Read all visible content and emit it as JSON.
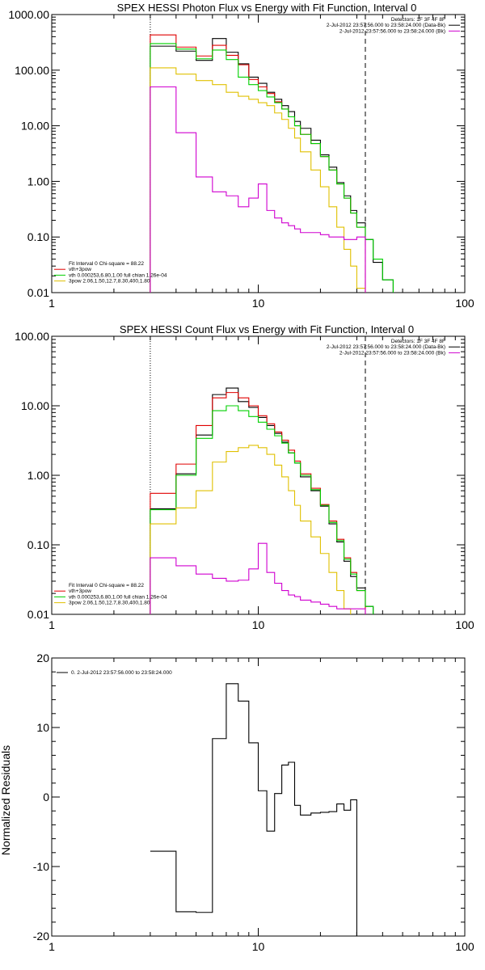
{
  "colors": {
    "black": "#000000",
    "red": "#e00000",
    "green": "#00d000",
    "yellow": "#e0c000",
    "magenta": "#d000d0"
  },
  "chart_data": [
    {
      "type": "line",
      "title": "SPEX HESSI Photon Flux vs Energy with Fit Function, Interval 0",
      "xscale": "log",
      "yscale": "log",
      "xlim": [
        1,
        100
      ],
      "ylim": [
        0.01,
        1000
      ],
      "x_ticks": [
        {
          "v": 1,
          "label": "1"
        },
        {
          "v": 10,
          "label": "10"
        },
        {
          "v": 100,
          "label": "100"
        }
      ],
      "y_ticks": [
        {
          "v": 1000,
          "label": "1000.00"
        },
        {
          "v": 100,
          "label": "100.00"
        },
        {
          "v": 10,
          "label": "10.00"
        },
        {
          "v": 1,
          "label": "1.00"
        },
        {
          "v": 0.1,
          "label": "0.10"
        },
        {
          "v": 0.01,
          "label": "0.01"
        }
      ],
      "vlines": [
        {
          "x": 3,
          "style": "dotted"
        },
        {
          "x": 33,
          "style": "dashed"
        }
      ],
      "legend_top_right": [
        {
          "text": "Detectors: 1F 3F 4F 8F",
          "color": "none"
        },
        {
          "text": "2-Jul-2012 23:57:56.000 to 23:58:24.000 (Data-Bk)",
          "color": "black"
        },
        {
          "text": "2-Jul-2012 23:57:56.000 to 23:58:24.000 (Bk)",
          "color": "magenta"
        }
      ],
      "legend_bottom_left": [
        {
          "text": "Fit Interval 0   Chi-square = 88.22",
          "color": "none"
        },
        {
          "text": "vth+3pow",
          "color": "red"
        },
        {
          "text": "vth 0.000253,6.80,1.00  full chian 1.26e-04",
          "color": "green"
        },
        {
          "text": "3pow 2.06,1.50,12.7,8.30,400,1.80",
          "color": "yellow"
        }
      ],
      "edges": [
        3,
        4,
        5,
        6,
        7,
        8,
        9,
        10,
        11,
        12,
        13,
        14,
        15,
        16,
        18,
        20,
        22,
        24,
        26,
        28,
        30,
        33,
        36,
        40,
        45
      ],
      "series": [
        {
          "color": "black",
          "values": [
            270,
            220,
            150,
            370,
            210,
            130,
            75,
            58,
            40,
            30,
            23,
            18,
            12,
            9,
            5.5,
            3.0,
            1.8,
            0.95,
            0.55,
            0.3,
            0.18,
            0.09,
            0.035,
            0.017
          ]
        },
        {
          "color": "red",
          "values": [
            430,
            260,
            180,
            280,
            185,
            125,
            68,
            50,
            38,
            27,
            20,
            14.5,
            10,
            7,
            4.8,
            2.8,
            1.6,
            0.9,
            0.5,
            0.27,
            0.15,
            null,
            null,
            null
          ]
        },
        {
          "color": "green",
          "values": [
            300,
            240,
            160,
            230,
            155,
            75,
            55,
            43,
            33,
            26,
            20,
            14.5,
            10,
            7,
            4.8,
            2.8,
            1.6,
            0.9,
            0.5,
            0.27,
            0.15,
            0.09,
            0.04,
            0.017
          ]
        },
        {
          "color": "yellow",
          "values": [
            110,
            85,
            65,
            55,
            40,
            34,
            30,
            26,
            23,
            17,
            13,
            9,
            6,
            3.4,
            1.6,
            0.8,
            0.35,
            0.15,
            0.06,
            0.03,
            0.012,
            null,
            null,
            null
          ]
        },
        {
          "color": "magenta",
          "values": [
            50,
            7.5,
            1.2,
            0.65,
            0.55,
            0.35,
            0.5,
            0.9,
            0.3,
            0.22,
            0.18,
            0.16,
            0.14,
            0.12,
            0.12,
            0.11,
            0.1,
            0.1,
            0.09,
            0.09,
            0.1,
            null,
            null,
            null
          ]
        }
      ]
    },
    {
      "type": "line",
      "title": "SPEX HESSI Count Flux vs Energy with Fit Function, Interval 0",
      "xscale": "log",
      "yscale": "log",
      "xlim": [
        1,
        100
      ],
      "ylim": [
        0.01,
        100
      ],
      "x_ticks": [
        {
          "v": 1,
          "label": "1"
        },
        {
          "v": 10,
          "label": "10"
        },
        {
          "v": 100,
          "label": "100"
        }
      ],
      "y_ticks": [
        {
          "v": 100,
          "label": "100.00"
        },
        {
          "v": 10,
          "label": "10.00"
        },
        {
          "v": 1,
          "label": "1.00"
        },
        {
          "v": 0.1,
          "label": "0.10"
        },
        {
          "v": 0.01,
          "label": "0.01"
        }
      ],
      "vlines": [
        {
          "x": 3,
          "style": "dotted"
        },
        {
          "x": 33,
          "style": "dashed"
        }
      ],
      "legend_top_right": [
        {
          "text": "Detectors: 1F 3F 4F 8F",
          "color": "none"
        },
        {
          "text": "2-Jul-2012 23:57:56.000 to 23:58:24.000 (Data-Bk)",
          "color": "black"
        },
        {
          "text": "2-Jul-2012 23:57:56.000 to 23:58:24.000 (Bk)",
          "color": "magenta"
        }
      ],
      "legend_bottom_left": [
        {
          "text": "Fit Interval 0   Chi-square = 88.22",
          "color": "none"
        },
        {
          "text": "vth+3pow",
          "color": "red"
        },
        {
          "text": "vth 0.000253,6.80,1.00  full chian 1.26e-04",
          "color": "green"
        },
        {
          "text": "3pow 2.06,1.50,12.7,8.30,400,1.80",
          "color": "yellow"
        }
      ],
      "edges": [
        3,
        4,
        5,
        6,
        7,
        8,
        9,
        10,
        11,
        12,
        13,
        14,
        15,
        16,
        18,
        20,
        22,
        24,
        26,
        28,
        30,
        33,
        36
      ],
      "series": [
        {
          "color": "black",
          "values": [
            0.33,
            1.05,
            3.8,
            14.5,
            18,
            11.5,
            9.5,
            6.8,
            5.2,
            4.0,
            3.0,
            2.1,
            1.5,
            0.95,
            0.6,
            0.36,
            0.2,
            0.11,
            0.058,
            0.035,
            0.024,
            0.013
          ]
        },
        {
          "color": "red",
          "values": [
            0.55,
            1.45,
            5.2,
            13,
            15.5,
            13,
            10,
            7.2,
            5.5,
            4.2,
            3.2,
            2.3,
            1.6,
            1.05,
            0.65,
            0.38,
            0.22,
            0.12,
            0.065,
            0.04,
            0.022,
            null
          ]
        },
        {
          "color": "green",
          "values": [
            0.32,
            1.0,
            3.4,
            8.5,
            10,
            8.5,
            7.0,
            5.8,
            4.6,
            3.7,
            2.9,
            2.1,
            1.5,
            1.0,
            0.62,
            0.37,
            0.21,
            0.115,
            0.062,
            0.038,
            0.022,
            0.013
          ]
        },
        {
          "color": "yellow",
          "values": [
            0.2,
            0.34,
            0.6,
            1.55,
            2.2,
            2.5,
            2.7,
            2.5,
            2.0,
            1.4,
            0.95,
            0.6,
            0.37,
            0.22,
            0.13,
            0.075,
            0.04,
            0.022,
            0.012,
            null,
            null,
            null
          ]
        },
        {
          "color": "magenta",
          "values": [
            0.065,
            0.05,
            0.038,
            0.033,
            0.03,
            0.031,
            0.045,
            0.105,
            0.04,
            0.028,
            0.022,
            0.019,
            0.018,
            0.016,
            0.015,
            0.014,
            0.013,
            0.012,
            0.012,
            0.012,
            0.012,
            null
          ]
        }
      ]
    },
    {
      "type": "line",
      "title": "",
      "ylabel": "Normalized Residuals",
      "xscale": "log",
      "yscale": "linear",
      "xlim": [
        1,
        100
      ],
      "ylim": [
        -20,
        20
      ],
      "x_ticks": [
        {
          "v": 1,
          "label": "1"
        },
        {
          "v": 10,
          "label": "10"
        },
        {
          "v": 100,
          "label": "100"
        }
      ],
      "y_ticks": [
        {
          "v": 20,
          "label": "20"
        },
        {
          "v": 10,
          "label": "10"
        },
        {
          "v": 0,
          "label": "0"
        },
        {
          "v": -10,
          "label": "-10"
        },
        {
          "v": -20,
          "label": "-20"
        }
      ],
      "vlines": [],
      "legend_top_left": [
        {
          "text": "0.  2-Jul-2012 23:57:56.000 to 23:58:24.000",
          "color": "black"
        }
      ],
      "edges": [
        3,
        4,
        5,
        6,
        7,
        8,
        9,
        10,
        11,
        12,
        13,
        14,
        15,
        16,
        18,
        20,
        22,
        24,
        26,
        28,
        30,
        33
      ],
      "series": [
        {
          "color": "black",
          "values": [
            -7.8,
            -16.5,
            -16.6,
            8.4,
            16.3,
            13.8,
            7.8,
            0.9,
            -4.9,
            0.5,
            4.6,
            5.0,
            -1.2,
            -2.6,
            -2.3,
            -2.2,
            -2.1,
            -1.0,
            -1.9,
            -0.4,
            -20.5
          ]
        }
      ]
    }
  ]
}
